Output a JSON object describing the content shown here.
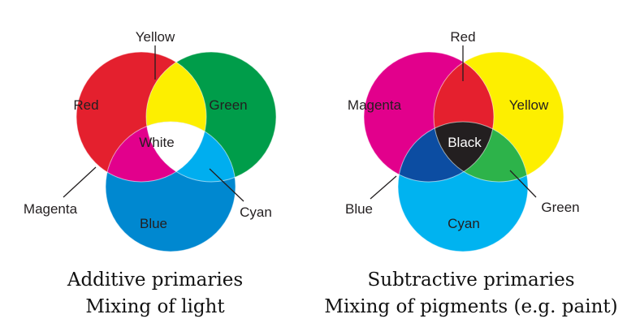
{
  "additive": {
    "labels": {
      "yellow": "Yellow",
      "red": "Red",
      "green": "Green",
      "white": "White",
      "magenta": "Magenta",
      "cyan": "Cyan",
      "blue": "Blue"
    },
    "caption_line1": "Additive primaries",
    "caption_line2": "Mixing of light",
    "colors": {
      "red": "#e4202e",
      "green": "#009d4a",
      "blue": "#0088d0",
      "yellow": "#fdef00",
      "magenta": "#e2008c",
      "cyan": "#00aeef",
      "white": "#ffffff"
    }
  },
  "subtractive": {
    "labels": {
      "red": "Red",
      "magenta": "Magenta",
      "yellow": "Yellow",
      "black": "Black",
      "blue": "Blue",
      "green": "Green",
      "cyan": "Cyan"
    },
    "caption_line1": "Subtractive primaries",
    "caption_line2": "Mixing of pigments (e.g. paint)",
    "colors": {
      "magenta": "#e2008c",
      "yellow": "#fdef00",
      "cyan": "#00b3f0",
      "red": "#e5202e",
      "green": "#2db34a",
      "blue": "#0c4da2",
      "black": "#231f20"
    }
  }
}
